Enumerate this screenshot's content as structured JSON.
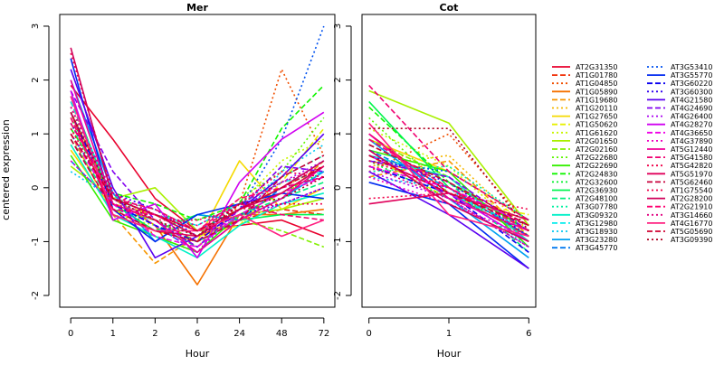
{
  "chart_data": [
    {
      "type": "line",
      "title": "Mer",
      "xlabel": "Hour",
      "ylabel": "centered expression",
      "categories": [
        "0",
        "1",
        "2",
        "6",
        "24",
        "48",
        "72"
      ],
      "ylim": [
        -2,
        3
      ],
      "yticks": [
        "-2",
        "-1",
        "0",
        "1",
        "2",
        "3"
      ],
      "series": [
        {
          "name": "AT2G31350",
          "values": [
            1.9,
            0.9,
            -0.2,
            -0.8,
            -0.7,
            -0.6,
            -0.9
          ]
        },
        {
          "name": "AT1G01780",
          "values": [
            1.6,
            -0.3,
            -0.5,
            -0.9,
            -0.6,
            -0.4,
            -0.5
          ]
        },
        {
          "name": "AT1G04850",
          "values": [
            1.2,
            -0.1,
            -0.9,
            -1.2,
            -0.3,
            2.2,
            0.6
          ]
        },
        {
          "name": "AT1G05890",
          "values": [
            1.4,
            -0.2,
            -0.7,
            -1.8,
            -0.5,
            -0.5,
            -0.4
          ]
        },
        {
          "name": "AT1G19680",
          "values": [
            1.0,
            -0.5,
            -1.4,
            -0.9,
            -0.6,
            -0.2,
            0.5
          ]
        },
        {
          "name": "AT1G20110",
          "values": [
            1.1,
            -0.2,
            -0.6,
            -1.0,
            -0.4,
            0.0,
            0.4
          ]
        },
        {
          "name": "AT1G27650",
          "values": [
            0.7,
            -0.4,
            -0.8,
            -1.0,
            0.5,
            -0.4,
            0.0
          ]
        },
        {
          "name": "AT1G50620",
          "values": [
            0.9,
            -0.3,
            -0.5,
            -0.9,
            -0.7,
            0.1,
            1.1
          ]
        },
        {
          "name": "AT1G61620",
          "values": [
            0.8,
            -0.5,
            -0.7,
            -1.1,
            -0.3,
            0.5,
            0.9
          ]
        },
        {
          "name": "AT2G01650",
          "values": [
            0.4,
            -0.2,
            0.0,
            -0.8,
            -0.5,
            -0.4,
            -0.2
          ]
        },
        {
          "name": "AT2G02160",
          "values": [
            1.3,
            -0.4,
            -0.6,
            -1.0,
            -0.6,
            -0.8,
            -1.1
          ]
        },
        {
          "name": "AT2G22680",
          "values": [
            1.5,
            -0.3,
            -0.5,
            -0.9,
            -0.2,
            0.3,
            1.3
          ]
        },
        {
          "name": "AT2G22690",
          "values": [
            0.6,
            -0.6,
            -0.9,
            -1.2,
            -0.5,
            -0.1,
            0.4
          ]
        },
        {
          "name": "AT2G24830",
          "values": [
            1.1,
            -0.1,
            -0.3,
            -0.6,
            -0.3,
            1.1,
            1.9
          ]
        },
        {
          "name": "AT2G32600",
          "values": [
            1.3,
            -0.2,
            -0.4,
            -0.8,
            -0.4,
            -0.1,
            0.3
          ]
        },
        {
          "name": "AT2G36930",
          "values": [
            1.7,
            -0.3,
            -0.8,
            -0.5,
            -0.6,
            -0.5,
            -0.5
          ]
        },
        {
          "name": "AT2G48100",
          "values": [
            0.9,
            -0.3,
            -0.7,
            -1.1,
            -0.5,
            -0.2,
            0.1
          ]
        },
        {
          "name": "AT3G07780",
          "values": [
            1.2,
            -0.4,
            -0.6,
            -0.9,
            -0.3,
            0.2,
            0.6
          ]
        },
        {
          "name": "AT3G09320",
          "values": [
            0.8,
            -0.5,
            -0.9,
            -1.3,
            -0.7,
            -0.3,
            -0.1
          ]
        },
        {
          "name": "AT3G12980",
          "values": [
            1.6,
            -0.2,
            -0.5,
            -0.7,
            -0.3,
            0.1,
            0.3
          ]
        },
        {
          "name": "AT3G18930",
          "values": [
            0.3,
            -0.2,
            -0.6,
            -1.0,
            -0.6,
            0.3,
            0.8
          ]
        },
        {
          "name": "AT3G23280",
          "values": [
            2.0,
            -0.1,
            -1.0,
            -0.5,
            -0.6,
            -0.2,
            0.3
          ]
        },
        {
          "name": "AT3G45770",
          "values": [
            0.5,
            -0.3,
            -0.7,
            -1.2,
            -0.6,
            0.0,
            0.5
          ]
        },
        {
          "name": "AT3G53410",
          "values": [
            1.0,
            -0.2,
            -0.5,
            -0.8,
            -0.4,
            0.9,
            3.0
          ]
        },
        {
          "name": "AT3G55770",
          "values": [
            2.4,
            -0.4,
            -1.0,
            -0.5,
            -0.3,
            -0.1,
            -0.2
          ]
        },
        {
          "name": "AT3G60220",
          "values": [
            1.4,
            -0.3,
            -0.7,
            -1.0,
            -0.4,
            0.0,
            0.2
          ]
        },
        {
          "name": "AT3G60300",
          "values": [
            1.2,
            -0.1,
            -0.4,
            -0.9,
            -0.5,
            -0.3,
            0.0
          ]
        },
        {
          "name": "AT4G21580",
          "values": [
            2.2,
            0.0,
            -1.3,
            -0.9,
            -0.4,
            0.2,
            1.0
          ]
        },
        {
          "name": "AT4G24690",
          "values": [
            1.8,
            0.3,
            -0.6,
            -1.1,
            -0.4,
            0.4,
            0.3
          ]
        },
        {
          "name": "AT4G26400",
          "values": [
            1.5,
            -0.2,
            -0.7,
            -1.2,
            -0.4,
            0.1,
            0.5
          ]
        },
        {
          "name": "AT4G28270",
          "values": [
            1.8,
            -0.6,
            -0.3,
            -1.3,
            0.1,
            0.9,
            1.4
          ]
        },
        {
          "name": "AT4G36650",
          "values": [
            1.0,
            -0.3,
            -0.9,
            -1.1,
            -0.5,
            -0.1,
            0.2
          ]
        },
        {
          "name": "AT4G37890",
          "values": [
            0.5,
            -0.3,
            -0.5,
            -0.8,
            -0.6,
            -0.3,
            0.0
          ]
        },
        {
          "name": "AT5G12440",
          "values": [
            2.0,
            -0.3,
            -0.6,
            -1.2,
            -0.6,
            -0.2,
            0.4
          ]
        },
        {
          "name": "AT5G41580",
          "values": [
            1.2,
            -0.2,
            -0.4,
            -0.8,
            -0.3,
            -0.5,
            -0.6
          ]
        },
        {
          "name": "AT5G42820",
          "values": [
            2.5,
            -0.1,
            -0.6,
            -1.0,
            -0.3,
            0.3,
            0.2
          ]
        },
        {
          "name": "AT5G51970",
          "values": [
            1.4,
            -0.5,
            -0.8,
            -0.9,
            -0.4,
            -0.1,
            0.4
          ]
        },
        {
          "name": "AT5G62460",
          "values": [
            0.9,
            -0.4,
            -0.8,
            -1.0,
            -0.6,
            0.2,
            0.6
          ]
        },
        {
          "name": "AT1G75540",
          "values": [
            1.1,
            -0.3,
            -0.6,
            -0.6,
            -0.4,
            -0.3,
            -0.3
          ]
        },
        {
          "name": "AT2G28200",
          "values": [
            2.6,
            -0.2,
            -0.5,
            -0.9,
            -0.4,
            0.0,
            0.5
          ]
        },
        {
          "name": "AT2G21910",
          "values": [
            1.3,
            -0.4,
            -0.5,
            -0.8,
            -0.2,
            0.0,
            0.2
          ]
        },
        {
          "name": "AT3G14660",
          "values": [
            1.5,
            -0.1,
            -0.5,
            -0.7,
            -0.3,
            0.1,
            0.4
          ]
        },
        {
          "name": "AT4G16770",
          "values": [
            1.7,
            -0.5,
            -0.8,
            -0.8,
            -0.5,
            -0.9,
            -0.6
          ]
        },
        {
          "name": "AT5G05690",
          "values": [
            1.0,
            -0.2,
            -0.5,
            -0.8,
            -0.4,
            0.0,
            0.4
          ]
        },
        {
          "name": "AT3G09390",
          "values": [
            1.4,
            -0.2,
            -0.6,
            -0.9,
            -0.3,
            -0.2,
            0.2
          ]
        }
      ]
    },
    {
      "type": "line",
      "title": "Cot",
      "xlabel": "Hour",
      "ylabel": "",
      "categories": [
        "0",
        "1",
        "6"
      ],
      "ylim": [
        -2,
        3
      ],
      "yticks": [
        "-2",
        "-1",
        "0",
        "1",
        "2",
        "3"
      ],
      "series": [
        {
          "name": "AT2G31350",
          "values": [
            1.0,
            -0.1,
            -0.9
          ]
        },
        {
          "name": "AT1G01780",
          "values": [
            0.8,
            0.1,
            -0.8
          ]
        },
        {
          "name": "AT1G04850",
          "values": [
            0.3,
            1.0,
            -0.7
          ]
        },
        {
          "name": "AT1G05890",
          "values": [
            0.5,
            0.2,
            -1.0
          ]
        },
        {
          "name": "AT1G19680",
          "values": [
            0.2,
            0.5,
            -0.9
          ]
        },
        {
          "name": "AT1G20110",
          "values": [
            0.4,
            0.6,
            -0.8
          ]
        },
        {
          "name": "AT1G27650",
          "values": [
            0.9,
            0.3,
            -0.6
          ]
        },
        {
          "name": "AT1G50620",
          "values": [
            0.6,
            -0.2,
            -0.5
          ]
        },
        {
          "name": "AT1G61620",
          "values": [
            1.1,
            0.4,
            -0.9
          ]
        },
        {
          "name": "AT2G01650",
          "values": [
            1.8,
            1.2,
            -0.7
          ]
        },
        {
          "name": "AT2G02160",
          "values": [
            0.9,
            0.2,
            -1.0
          ]
        },
        {
          "name": "AT2G22680",
          "values": [
            1.3,
            -0.1,
            -0.6
          ]
        },
        {
          "name": "AT2G22690",
          "values": [
            0.7,
            0.3,
            -1.1
          ]
        },
        {
          "name": "AT2G24830",
          "values": [
            1.5,
            0.1,
            -0.8
          ]
        },
        {
          "name": "AT2G32600",
          "values": [
            0.5,
            -0.2,
            -0.7
          ]
        },
        {
          "name": "AT2G36930",
          "values": [
            1.6,
            0.0,
            -0.9
          ]
        },
        {
          "name": "AT2G48100",
          "values": [
            0.8,
            0.1,
            -1.2
          ]
        },
        {
          "name": "AT3G07780",
          "values": [
            0.3,
            0.4,
            -0.6
          ]
        },
        {
          "name": "AT3G09320",
          "values": [
            0.6,
            0.2,
            -1.0
          ]
        },
        {
          "name": "AT3G12980",
          "values": [
            0.4,
            -0.1,
            -0.8
          ]
        },
        {
          "name": "AT3G18930",
          "values": [
            0.2,
            0.0,
            -1.1
          ]
        },
        {
          "name": "AT3G23280",
          "values": [
            0.9,
            -0.2,
            -1.3
          ]
        },
        {
          "name": "AT3G45770",
          "values": [
            0.7,
            0.0,
            -0.9
          ]
        },
        {
          "name": "AT3G53410",
          "values": [
            0.5,
            0.3,
            -0.6
          ]
        },
        {
          "name": "AT3G55770",
          "values": [
            0.1,
            -0.3,
            -1.5
          ]
        },
        {
          "name": "AT3G60220",
          "values": [
            0.4,
            -0.1,
            -1.2
          ]
        },
        {
          "name": "AT3G60300",
          "values": [
            0.6,
            0.1,
            -0.9
          ]
        },
        {
          "name": "AT4G21580",
          "values": [
            0.3,
            -0.5,
            -1.5
          ]
        },
        {
          "name": "AT4G24690",
          "values": [
            0.5,
            0.2,
            -0.8
          ]
        },
        {
          "name": "AT4G26400",
          "values": [
            0.3,
            -0.2,
            -1.1
          ]
        },
        {
          "name": "AT4G28270",
          "values": [
            0.6,
            -0.1,
            -1.0
          ]
        },
        {
          "name": "AT4G36650",
          "values": [
            0.4,
            0.0,
            -0.7
          ]
        },
        {
          "name": "AT4G37890",
          "values": [
            0.2,
            -0.3,
            -0.9
          ]
        },
        {
          "name": "AT5G12440",
          "values": [
            1.0,
            -0.2,
            -0.8
          ]
        },
        {
          "name": "AT5G41580",
          "values": [
            1.9,
            0.3,
            -0.6
          ]
        },
        {
          "name": "AT5G42820",
          "values": [
            -0.2,
            -0.1,
            -0.4
          ]
        },
        {
          "name": "AT5G51970",
          "values": [
            -0.3,
            -0.1,
            -0.6
          ]
        },
        {
          "name": "AT5G62460",
          "values": [
            0.8,
            0.1,
            -0.7
          ]
        },
        {
          "name": "AT1G75540",
          "values": [
            0.5,
            0.0,
            -0.9
          ]
        },
        {
          "name": "AT2G28200",
          "values": [
            0.7,
            -0.3,
            -1.0
          ]
        },
        {
          "name": "AT2G21910",
          "values": [
            0.9,
            0.0,
            -0.8
          ]
        },
        {
          "name": "AT3G14660",
          "values": [
            0.4,
            -0.2,
            -1.1
          ]
        },
        {
          "name": "AT4G16770",
          "values": [
            1.2,
            -0.5,
            -0.9
          ]
        },
        {
          "name": "AT5G05690",
          "values": [
            0.6,
            -0.1,
            -0.7
          ]
        },
        {
          "name": "AT3G09390",
          "values": [
            1.1,
            1.1,
            -0.8
          ]
        }
      ]
    }
  ],
  "styles": {
    "colors": [
      "#e8002d",
      "#f02a00",
      "#f04f00",
      "#f57100",
      "#f79600",
      "#f5b700",
      "#f5d900",
      "#e8f000",
      "#c9f500",
      "#a8f000",
      "#83f000",
      "#5df500",
      "#35f000",
      "#10f500",
      "#00f02a",
      "#00f54f",
      "#00f07a",
      "#00f0a0",
      "#00f0c8",
      "#00ecec",
      "#00c8f0",
      "#00a0f0",
      "#0079f0",
      "#0052f0",
      "#002af0",
      "#0a00f0",
      "#3300f0",
      "#5a00f0",
      "#8200f0",
      "#aa00f0",
      "#d000f0",
      "#f000e6",
      "#f000c0",
      "#f00098",
      "#f00070",
      "#f00048",
      "#e0005a",
      "#c8003c",
      "#f0004a",
      "#d0005a",
      "#ff0070",
      "#e00080",
      "#ff2080",
      "#d00030",
      "#b00020"
    ],
    "dash_cycle": [
      "solid",
      "dashed",
      "dotted"
    ],
    "legend_placement": "right"
  }
}
